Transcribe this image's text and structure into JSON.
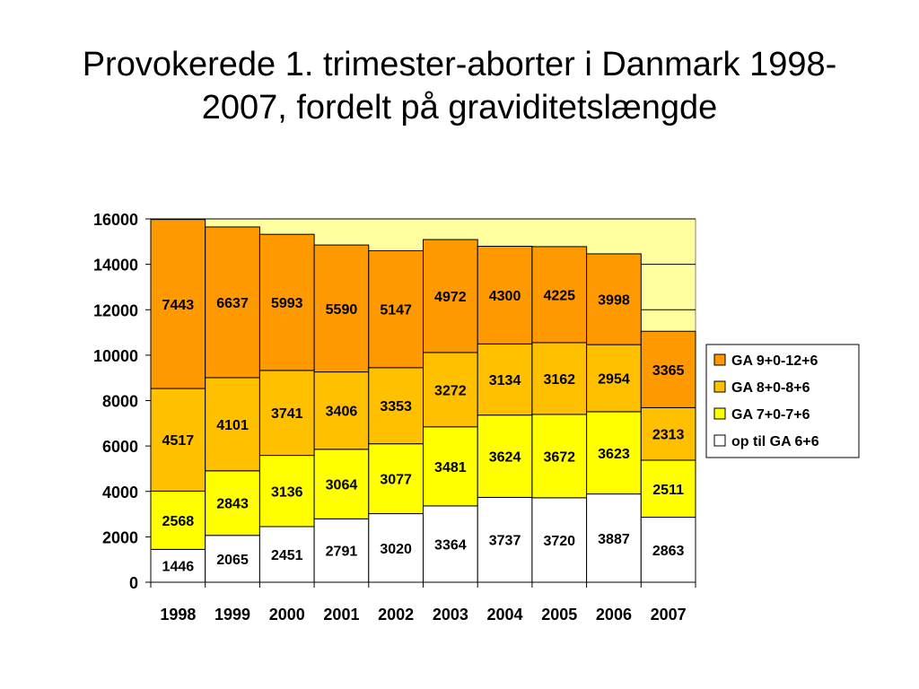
{
  "chart_data": {
    "type": "bar",
    "stacked": true,
    "title_lines": [
      "Provokerede 1. trimester-aborter i Danmark 1998-",
      "2007, fordelt på graviditetslængde"
    ],
    "categories": [
      "1998",
      "1999",
      "2000",
      "2001",
      "2002",
      "2003",
      "2004",
      "2005",
      "2006",
      "2007"
    ],
    "series": [
      {
        "name": "op til GA 6+6",
        "color": "#ffffff",
        "values": [
          1446,
          2065,
          2451,
          2791,
          3020,
          3364,
          3737,
          3720,
          3887,
          2863
        ]
      },
      {
        "name": "GA 7+0-7+6",
        "color": "#ffff00",
        "values": [
          2568,
          2843,
          3136,
          3064,
          3077,
          3481,
          3624,
          3672,
          3623,
          2511
        ]
      },
      {
        "name": "GA 8+0-8+6",
        "color": "#ffc000",
        "values": [
          4517,
          4101,
          3741,
          3406,
          3353,
          3272,
          3134,
          3162,
          2954,
          2313
        ]
      },
      {
        "name": "GA 9+0-12+6",
        "color": "#ff9900",
        "values": [
          7443,
          6637,
          5993,
          5590,
          5147,
          4972,
          4300,
          4225,
          3998,
          3365
        ]
      }
    ],
    "legend_order": [
      "GA 9+0-12+6",
      "GA 8+0-8+6",
      "GA 7+0-7+6",
      "op til GA 6+6"
    ],
    "yticks": [
      "0",
      "2000",
      "4000",
      "6000",
      "8000",
      "10000",
      "12000",
      "14000",
      "16000"
    ],
    "ylim": [
      0,
      16000
    ],
    "grid": true,
    "legend_position": "right",
    "plot_background": "#ffffa0"
  }
}
